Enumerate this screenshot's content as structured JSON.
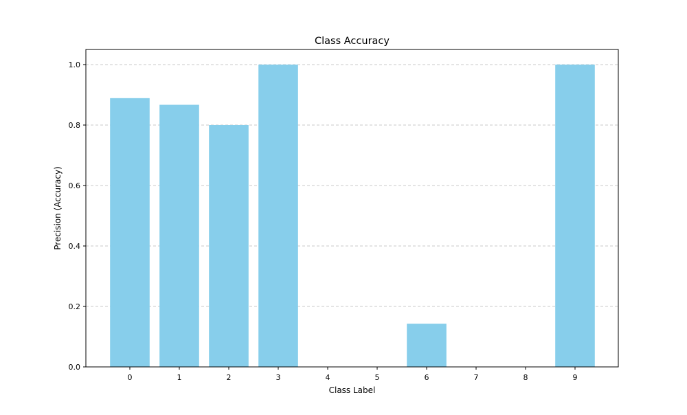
{
  "chart_data": {
    "type": "bar",
    "title": "Class Accuracy",
    "xlabel": "Class Label",
    "ylabel": "Precision (Accuracy)",
    "categories": [
      "0",
      "1",
      "2",
      "3",
      "4",
      "5",
      "6",
      "7",
      "8",
      "9"
    ],
    "values": [
      0.889,
      0.867,
      0.8,
      1.0,
      0.0,
      0.0,
      0.143,
      0.0,
      0.0,
      1.0
    ],
    "ylim": [
      0,
      1.05
    ],
    "yticks": [
      "0.0",
      "0.2",
      "0.4",
      "0.6",
      "0.8",
      "1.0"
    ],
    "grid": "y-dashed",
    "legend": "none",
    "bar_color": "#87CEEB",
    "grid_color": "#c8c8c8"
  }
}
